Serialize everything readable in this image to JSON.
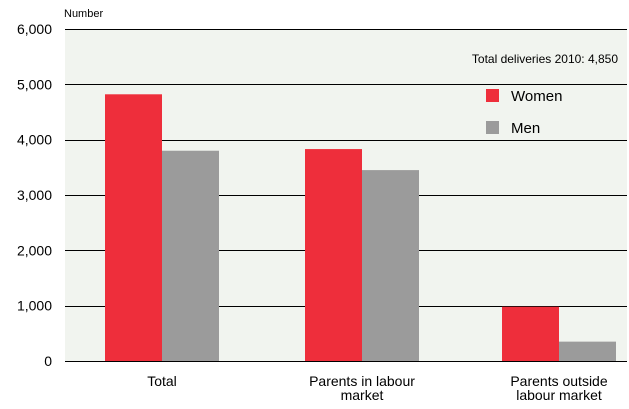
{
  "chart_data": {
    "type": "bar",
    "y_unit_label": "Number",
    "annotation": "Total deliveries 2010: 4,850",
    "categories": [
      [
        "Total"
      ],
      [
        "Parents in labour",
        "market"
      ],
      [
        "Parents outside",
        "labour market"
      ]
    ],
    "series": [
      {
        "name": "Women",
        "color": "#ee2e3b",
        "values": [
          4820,
          3830,
          980
        ]
      },
      {
        "name": "Men",
        "color": "#9b9b9b",
        "values": [
          3800,
          3450,
          350
        ]
      }
    ],
    "ylim": [
      0,
      6000
    ],
    "yticks": [
      0,
      1000,
      2000,
      3000,
      4000,
      5000,
      6000
    ],
    "ytick_labels": [
      "0",
      "1,000",
      "2,000",
      "3,000",
      "4,000",
      "5,000",
      "6,000"
    ],
    "grid": true,
    "plot_background": "#f1f4ef",
    "grid_color": "#000000",
    "legend_position": "top-right"
  }
}
